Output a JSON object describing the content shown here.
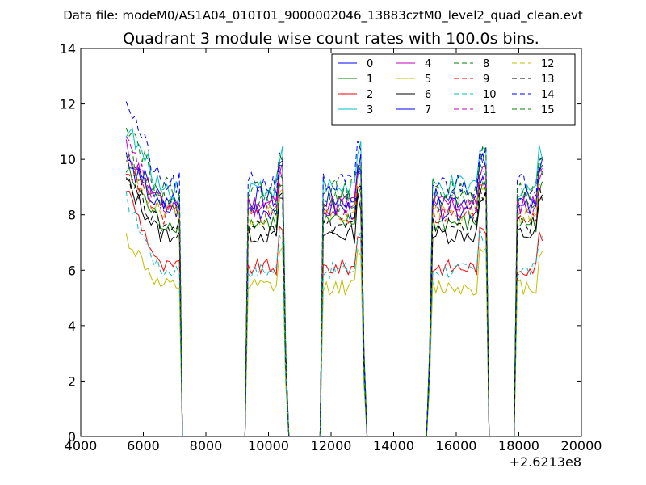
{
  "figure": {
    "suptitle": "Data file: modeM0/AS1A04_010T01_9000002046_13883cztM0_level2_quad_clean.evt"
  },
  "chart_data": {
    "type": "line",
    "title": "Quadrant 3 module wise count rates with 100.0s bins.",
    "xlabel": "",
    "ylabel": "",
    "x_offset_label": "+2.6213e8",
    "xlim": [
      4000,
      20000
    ],
    "ylim": [
      0,
      14
    ],
    "xticks": [
      4000,
      6000,
      8000,
      10000,
      12000,
      14000,
      16000,
      18000,
      20000
    ],
    "yticks": [
      0,
      2,
      4,
      6,
      8,
      10,
      12,
      14
    ],
    "grid": false,
    "legend_placement": "top-right",
    "legend_columns": 4,
    "x_sampling": {
      "start": 5450,
      "step": 100,
      "count": 134
    },
    "off_intervals": [
      [
        7250,
        9250
      ],
      [
        10600,
        11650
      ],
      [
        13100,
        15100
      ],
      [
        17050,
        17850
      ]
    ],
    "on_segments": [
      [
        5450,
        7150
      ],
      [
        9350,
        10450
      ],
      [
        11750,
        13000
      ],
      [
        15200,
        16950
      ],
      [
        17950,
        18750
      ]
    ],
    "series": [
      {
        "name": "0",
        "color": "#0000ff",
        "dash": "solid",
        "level": 8.6,
        "start_level": 10.2,
        "noise": 0.45
      },
      {
        "name": "1",
        "color": "#008000",
        "dash": "solid",
        "level": 7.7,
        "start_level": 9.6,
        "noise": 0.35
      },
      {
        "name": "2",
        "color": "#ff0000",
        "dash": "solid",
        "level": 6.1,
        "start_level": 9.0,
        "noise": 0.3
      },
      {
        "name": "3",
        "color": "#00bfbf",
        "dash": "solid",
        "level": 9.0,
        "start_level": 11.2,
        "noise": 0.45
      },
      {
        "name": "4",
        "color": "#bf00bf",
        "dash": "solid",
        "level": 8.4,
        "start_level": 10.4,
        "noise": 0.4
      },
      {
        "name": "5",
        "color": "#bfbf00",
        "dash": "solid",
        "level": 5.4,
        "start_level": 7.2,
        "noise": 0.3
      },
      {
        "name": "6",
        "color": "#000000",
        "dash": "solid",
        "level": 7.3,
        "start_level": 9.2,
        "noise": 0.35
      },
      {
        "name": "7",
        "color": "#0000ff",
        "dash": "solid",
        "level": 8.2,
        "start_level": 10.0,
        "noise": 0.4
      },
      {
        "name": "8",
        "color": "#008000",
        "dash": "dashed",
        "level": 8.5,
        "start_level": 10.3,
        "noise": 0.4
      },
      {
        "name": "9",
        "color": "#ff0000",
        "dash": "dashed",
        "level": 8.0,
        "start_level": 9.8,
        "noise": 0.4
      },
      {
        "name": "10",
        "color": "#00bfbf",
        "dash": "dashed",
        "level": 6.0,
        "start_level": 8.6,
        "noise": 0.3
      },
      {
        "name": "11",
        "color": "#bf00bf",
        "dash": "dashed",
        "level": 8.3,
        "start_level": 10.6,
        "noise": 0.4
      },
      {
        "name": "12",
        "color": "#bfbf00",
        "dash": "dashed",
        "level": 8.0,
        "start_level": 9.9,
        "noise": 0.4
      },
      {
        "name": "13",
        "color": "#000000",
        "dash": "dashed",
        "level": 7.6,
        "start_level": 9.4,
        "noise": 0.35
      },
      {
        "name": "14",
        "color": "#0000ff",
        "dash": "dashed",
        "level": 9.1,
        "start_level": 12.3,
        "noise": 0.45
      },
      {
        "name": "15",
        "color": "#008000",
        "dash": "dashed",
        "level": 8.9,
        "start_level": 11.5,
        "noise": 0.45
      }
    ]
  }
}
